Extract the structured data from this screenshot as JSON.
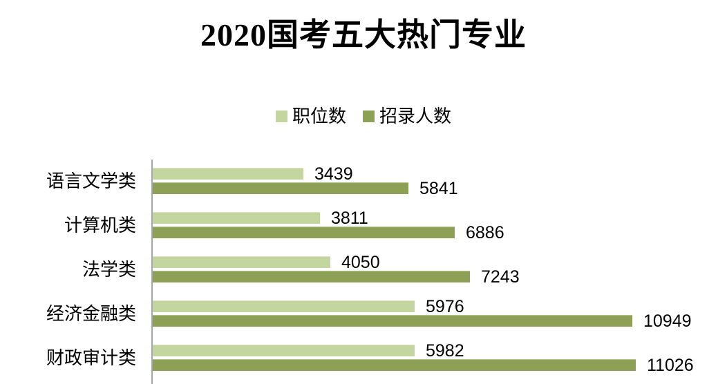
{
  "title": "2020国考五大热门专业",
  "chart_data": {
    "type": "bar",
    "orientation": "horizontal",
    "title": "2020国考五大热门专业",
    "categories": [
      "语言文学类",
      "计算机类",
      "法学类",
      "经济金融类",
      "财政审计类"
    ],
    "series": [
      {
        "name": "职位数",
        "color": "#c4d6a0",
        "values": [
          3439,
          3811,
          4050,
          5976,
          5982
        ]
      },
      {
        "name": "招录人数",
        "color": "#8ca155",
        "values": [
          5841,
          6886,
          7243,
          10949,
          11026
        ]
      }
    ],
    "xlim": [
      0,
      11026
    ],
    "grid": false,
    "legend_position": "top-center",
    "axis_color": "#a6a6a6",
    "text_color": "#000000",
    "background_color": "#ffffff",
    "data_labels": "outside-end"
  }
}
